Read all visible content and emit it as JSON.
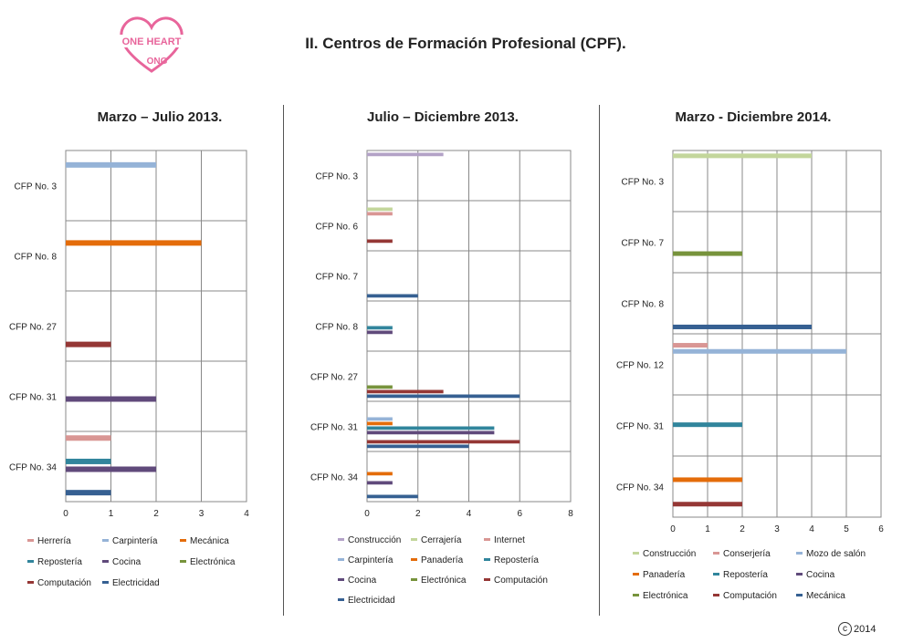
{
  "page": {
    "title": "II. Centros de Formación Profesional (CPF).",
    "logo": {
      "line1": "ONE HEART",
      "line2": "ONG"
    },
    "copyright": "2014"
  },
  "chart_data": [
    {
      "type": "bar",
      "title": "Marzo – Julio  2013.",
      "categories": [
        "CFP No. 3",
        "CFP No. 8",
        "CFP No. 27",
        "CFP No. 31",
        "CFP No. 34"
      ],
      "xlim": [
        0,
        4
      ],
      "xticks": [
        "0",
        "1",
        "2",
        "3",
        "4"
      ],
      "legend_position": "bottom",
      "legend": [
        "Herrería",
        "Carpintería",
        "Mecánica",
        "Repostería",
        "Cocina",
        "Electrónica",
        "Computación",
        "Electricidad"
      ],
      "series": [
        {
          "name": "Herrería",
          "color": "#d99694",
          "values": [
            0,
            0,
            0,
            0,
            1
          ]
        },
        {
          "name": "Carpintería",
          "color": "#95b3d7",
          "values": [
            2,
            0,
            0,
            0,
            0
          ]
        },
        {
          "name": "Mecánica",
          "color": "#e46c0a",
          "values": [
            0,
            3,
            0,
            0,
            0
          ]
        },
        {
          "name": "Repostería",
          "color": "#31859c",
          "values": [
            0,
            0,
            0,
            0,
            1
          ]
        },
        {
          "name": "Cocina",
          "color": "#604a7b",
          "values": [
            0,
            0,
            0,
            2,
            2
          ]
        },
        {
          "name": "Electrónica",
          "color": "#77933c",
          "values": [
            0,
            0,
            0,
            0,
            0
          ]
        },
        {
          "name": "Computación",
          "color": "#953735",
          "values": [
            0,
            0,
            1,
            0,
            0
          ]
        },
        {
          "name": "Electricidad",
          "color": "#366092",
          "values": [
            0,
            0,
            0,
            0,
            1
          ]
        }
      ]
    },
    {
      "type": "bar",
      "title": "Julio – Diciembre 2013.",
      "categories": [
        "CFP No. 3",
        "CFP No. 6",
        "CFP No. 7",
        "CFP No. 8",
        "CFP No. 27",
        "CFP No. 31",
        "CFP No. 34"
      ],
      "xlim": [
        0,
        8
      ],
      "xticks": [
        "0",
        "2",
        "4",
        "6",
        "8"
      ],
      "legend_position": "bottom",
      "legend": [
        "Construcción",
        "Cerrajería",
        "Internet",
        "Carpintería",
        "Panadería",
        "Repostería",
        "Cocina",
        "Electrónica",
        "Computación",
        "Electricidad"
      ],
      "series": [
        {
          "name": "Construcción",
          "color": "#b3a2c7",
          "values": [
            3,
            0,
            0,
            0,
            0,
            0,
            0
          ]
        },
        {
          "name": "Cerrajería",
          "color": "#c3d69b",
          "values": [
            0,
            1,
            0,
            0,
            0,
            0,
            0
          ]
        },
        {
          "name": "Internet",
          "color": "#d99694",
          "values": [
            0,
            1,
            0,
            0,
            0,
            0,
            0
          ]
        },
        {
          "name": "Carpintería",
          "color": "#95b3d7",
          "values": [
            0,
            0,
            0,
            0,
            0,
            1,
            0
          ]
        },
        {
          "name": "Panadería",
          "color": "#e46c0a",
          "values": [
            0,
            0,
            0,
            0,
            0,
            1,
            1
          ]
        },
        {
          "name": "Repostería",
          "color": "#31859c",
          "values": [
            0,
            0,
            0,
            1,
            0,
            5,
            0
          ]
        },
        {
          "name": "Cocina",
          "color": "#604a7b",
          "values": [
            0,
            0,
            0,
            1,
            0,
            5,
            1
          ]
        },
        {
          "name": "Electrónica",
          "color": "#77933c",
          "values": [
            0,
            0,
            0,
            0,
            1,
            0,
            0
          ]
        },
        {
          "name": "Computación",
          "color": "#953735",
          "values": [
            0,
            1,
            0,
            0,
            3,
            6,
            0
          ]
        },
        {
          "name": "Electricidad",
          "color": "#366092",
          "values": [
            0,
            0,
            2,
            0,
            6,
            4,
            2
          ]
        }
      ]
    },
    {
      "type": "bar",
      "title": "Marzo - Diciembre 2014.",
      "categories": [
        "CFP No. 3",
        "CFP No. 7",
        "CFP No. 8",
        "CFP No. 12",
        "CFP No. 31",
        "CFP No. 34"
      ],
      "xlim": [
        0,
        6
      ],
      "xticks": [
        "0",
        "1",
        "2",
        "3",
        "4",
        "5",
        "6"
      ],
      "legend_position": "bottom",
      "legend": [
        "Construcción",
        "Conserjería",
        "Mozo de salón",
        "Panadería",
        "Repostería",
        "Cocina",
        "Electrónica",
        "Computación",
        "Mecánica"
      ],
      "series": [
        {
          "name": "Construcción",
          "color": "#c3d69b",
          "values": [
            4,
            0,
            0,
            0,
            0,
            0
          ]
        },
        {
          "name": "Conserjería",
          "color": "#d99694",
          "values": [
            0,
            0,
            0,
            1,
            0,
            0
          ]
        },
        {
          "name": "Mozo de salón",
          "color": "#95b3d7",
          "values": [
            0,
            0,
            0,
            5,
            0,
            0
          ]
        },
        {
          "name": "Panadería",
          "color": "#e46c0a",
          "values": [
            0,
            0,
            0,
            0,
            0,
            2
          ]
        },
        {
          "name": "Repostería",
          "color": "#31859c",
          "values": [
            0,
            0,
            0,
            0,
            2,
            0
          ]
        },
        {
          "name": "Cocina",
          "color": "#604a7b",
          "values": [
            0,
            0,
            0,
            0,
            0,
            0
          ]
        },
        {
          "name": "Electrónica",
          "color": "#77933c",
          "values": [
            0,
            2,
            0,
            0,
            0,
            0
          ]
        },
        {
          "name": "Computación",
          "color": "#953735",
          "values": [
            0,
            0,
            0,
            0,
            0,
            2
          ]
        },
        {
          "name": "Mecánica",
          "color": "#366092",
          "values": [
            0,
            0,
            4,
            0,
            0,
            0
          ]
        }
      ]
    }
  ]
}
